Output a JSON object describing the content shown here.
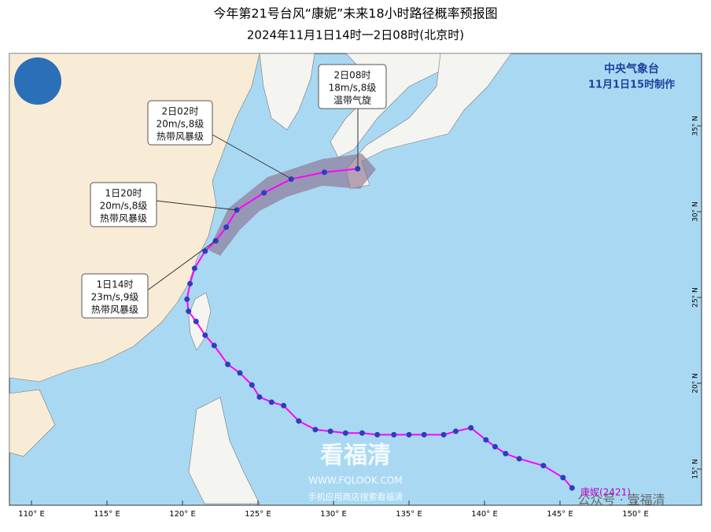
{
  "header": {
    "title": "今年第21号台风“康妮”未来18小时路径概率预报图",
    "subtitle": "2024年11月1日14时一2日08时(北京时)"
  },
  "agency": {
    "name": "中央气象台",
    "made": "11月1日15时制作"
  },
  "map": {
    "lonticks": [
      {
        "value": 110,
        "label": "110° E"
      },
      {
        "value": 115,
        "label": "115° E"
      },
      {
        "value": 120,
        "label": "120° E"
      },
      {
        "value": 125,
        "label": "125° E"
      },
      {
        "value": 130,
        "label": "130° E"
      },
      {
        "value": 135,
        "label": "135° E"
      },
      {
        "value": 140,
        "label": "140° E"
      },
      {
        "value": 145,
        "label": "145° E"
      },
      {
        "value": 150,
        "label": "150° E"
      }
    ],
    "latticks": [
      {
        "value": 15,
        "label": "15° N"
      },
      {
        "value": 20,
        "label": "20° N"
      },
      {
        "value": 25,
        "label": "25° N"
      },
      {
        "value": 30,
        "label": "30° N"
      },
      {
        "value": 35,
        "label": "35° N"
      }
    ],
    "track_color": "#ff00ff",
    "point_color": "#2a3fbf",
    "track": {
      "lon": [
        145.8,
        145.2,
        143.9,
        142.3,
        141.4,
        140.7,
        140.1,
        139.1,
        138.1,
        137.3,
        136.0,
        135.0,
        134.0,
        132.9,
        131.9,
        130.8,
        129.8,
        128.8,
        127.7,
        126.7,
        125.9,
        125.1,
        124.6,
        123.8,
        123.0,
        122.1,
        121.5,
        120.9,
        120.4,
        120.3,
        120.5,
        120.8,
        121.5,
        122.2
      ],
      "lat": [
        13.9,
        14.5,
        15.2,
        15.6,
        15.9,
        16.3,
        16.7,
        17.4,
        17.2,
        17.0,
        17.0,
        17.0,
        17.0,
        17.0,
        17.1,
        17.1,
        17.2,
        17.3,
        17.8,
        18.7,
        18.9,
        19.2,
        19.9,
        20.6,
        21.1,
        22.2,
        22.8,
        23.6,
        24.2,
        24.9,
        25.8,
        26.7,
        27.7,
        28.3
      ]
    },
    "forecast": {
      "lon": [
        122.2,
        122.9,
        123.6,
        125.4,
        127.2,
        129.4,
        131.6
      ],
      "lat": [
        28.3,
        29.1,
        30.1,
        31.1,
        31.9,
        32.3,
        32.5
      ]
    }
  },
  "typhoon": "康妮(2421)",
  "callouts": [
    [
      "2日08时",
      "18m/s,8级",
      "温带气旋"
    ],
    [
      "2日02时",
      "20m/s,8级",
      "热带风暴级"
    ],
    [
      "1日20时",
      "20m/s,8级",
      "热带风暴级"
    ],
    [
      "1日14时",
      "23m/s,9级",
      "热带风暴级"
    ]
  ],
  "watermark": {
    "logo": "看福清",
    "url": "WWW.FQLOOK.COM",
    "app": "手机应用商店搜索看福清",
    "account": "公众号 · 壹福清"
  }
}
